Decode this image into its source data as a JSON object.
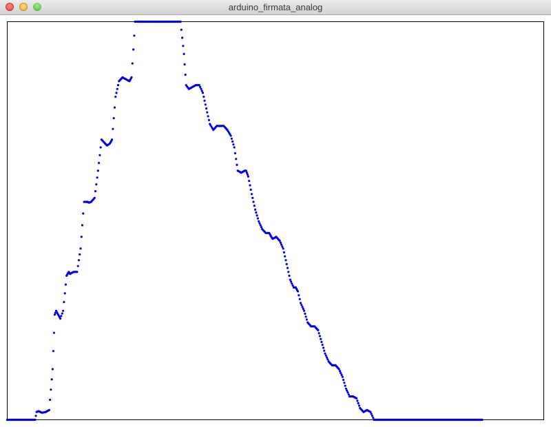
{
  "window": {
    "title": "arduino_firmata_analog"
  },
  "colors": {
    "point": "#0000ee",
    "frame": "#000000",
    "background": "#ffffff"
  },
  "chart_data": {
    "type": "scatter",
    "title": "",
    "xlabel": "",
    "ylabel": "",
    "xlim": [
      0,
      768
    ],
    "ylim": [
      0,
      1023
    ],
    "grid": false,
    "legend": "none",
    "series": [
      {
        "x": [
          0,
          10,
          20,
          30,
          40,
          42,
          45,
          50,
          55,
          60,
          65,
          68,
          70,
          73,
          76,
          80,
          85,
          88,
          90,
          95,
          100,
          105,
          110,
          115,
          117,
          120,
          125,
          130,
          135,
          140,
          143,
          147,
          150,
          155,
          160,
          165,
          170,
          175,
          178,
          183,
          187,
          190,
          193,
          196,
          200,
          210,
          220,
          230,
          240,
          248,
          253,
          256,
          260,
          265,
          270,
          275,
          280,
          285,
          290,
          295,
          300,
          305,
          310,
          315,
          320,
          325,
          330,
          335,
          340,
          342,
          345,
          350,
          355,
          360,
          365,
          370,
          375,
          378,
          380,
          385,
          390,
          395,
          400,
          405,
          410,
          413,
          416,
          420,
          425,
          430,
          435,
          440,
          445,
          450,
          455,
          460,
          465,
          470,
          475,
          480,
          485,
          490,
          495,
          500,
          505,
          510,
          515,
          520,
          525,
          530,
          535,
          540,
          545,
          550,
          555,
          560,
          570,
          580,
          600,
          620,
          640,
          660,
          680
        ],
        "y": [
          0,
          0,
          0,
          0,
          0,
          20,
          22,
          18,
          20,
          25,
          130,
          270,
          280,
          270,
          260,
          280,
          370,
          380,
          375,
          380,
          380,
          440,
          560,
          560,
          558,
          560,
          570,
          640,
          720,
          710,
          705,
          710,
          720,
          830,
          870,
          880,
          875,
          870,
          880,
          1023,
          1023,
          1023,
          1023,
          1023,
          1023,
          1023,
          1023,
          1023,
          1023,
          1023,
          940,
          860,
          850,
          855,
          860,
          860,
          840,
          800,
          760,
          745,
          755,
          755,
          755,
          745,
          730,
          700,
          640,
          635,
          640,
          640,
          625,
          580,
          540,
          510,
          490,
          480,
          480,
          470,
          465,
          470,
          460,
          440,
          400,
          360,
          340,
          340,
          330,
          300,
          280,
          250,
          240,
          240,
          230,
          200,
          170,
          150,
          140,
          140,
          130,
          110,
          80,
          60,
          60,
          55,
          30,
          20,
          25,
          20,
          0,
          0,
          0,
          0,
          0,
          0,
          0,
          0,
          0,
          0,
          0,
          0,
          0,
          0,
          0
        ]
      }
    ]
  }
}
